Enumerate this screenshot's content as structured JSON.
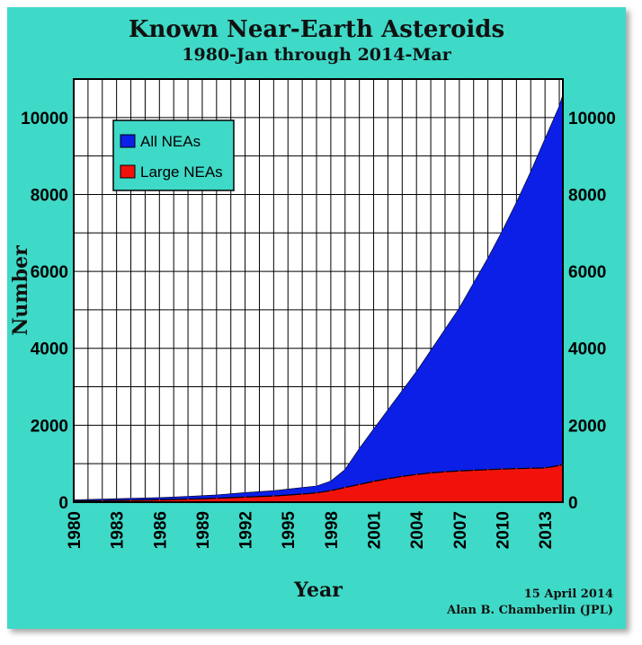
{
  "chart_data": {
    "type": "area",
    "title": "Known Near-Earth Asteroids",
    "subtitle": "1980-Jan through 2014-Mar",
    "xlabel": "Year",
    "ylabel": "Number",
    "xlim": [
      1980,
      2014.25
    ],
    "ylim": [
      0,
      11000
    ],
    "x_ticks": [
      "1980",
      "1983",
      "1986",
      "1989",
      "1992",
      "1995",
      "1998",
      "2001",
      "2004",
      "2007",
      "2010",
      "2013"
    ],
    "y_ticks": [
      "0",
      "2000",
      "4000",
      "6000",
      "8000",
      "10000"
    ],
    "grid": true,
    "legend_position": "top-left",
    "x": [
      1980,
      1982,
      1984,
      1986,
      1988,
      1990,
      1992,
      1994,
      1996,
      1997,
      1998,
      1999,
      2000,
      2001,
      2002,
      2003,
      2004,
      2005,
      2006,
      2007,
      2008,
      2009,
      2010,
      2011,
      2012,
      2013,
      2014,
      2014.25
    ],
    "series": [
      {
        "name": "All NEAs",
        "color": "#0b1fe6",
        "values": [
          60,
          80,
          100,
          120,
          150,
          190,
          250,
          300,
          380,
          420,
          550,
          850,
          1400,
          1900,
          2400,
          2900,
          3400,
          3950,
          4500,
          5050,
          5700,
          6350,
          7050,
          7800,
          8600,
          9450,
          10300,
          10600
        ]
      },
      {
        "name": "Large NEAs",
        "color": "#f2120c",
        "values": [
          30,
          40,
          50,
          60,
          80,
          100,
          130,
          160,
          210,
          240,
          300,
          380,
          460,
          540,
          610,
          670,
          720,
          760,
          790,
          810,
          830,
          845,
          860,
          870,
          880,
          890,
          950,
          980
        ]
      }
    ]
  },
  "credit": {
    "date": "15 April 2014",
    "author": "Alan B. Chamberlin (JPL)"
  }
}
